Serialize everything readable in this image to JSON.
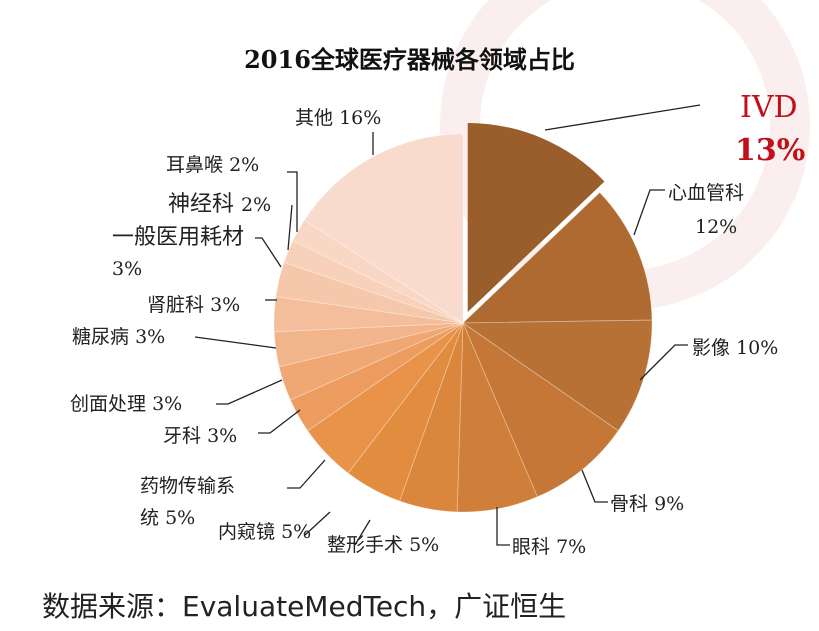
{
  "chart_data": {
    "type": "pie",
    "title": "2016全球医疗器械各领域占比",
    "slices": [
      {
        "label": "IVD",
        "pct_label": "13%",
        "value": 13,
        "color": "#9a5e2c",
        "exploded": true
      },
      {
        "label": "心血管科",
        "pct_label": "12%",
        "value": 12,
        "color": "#ae6a30"
      },
      {
        "label": "影像",
        "pct_label": "10%",
        "value": 10,
        "color": "#b87134"
      },
      {
        "label": "骨科",
        "pct_label": "9%",
        "value": 9,
        "color": "#c47736"
      },
      {
        "label": "眼科",
        "pct_label": "7%",
        "value": 7,
        "color": "#cf7f3a"
      },
      {
        "label": "整形手术",
        "pct_label": "5%",
        "value": 5,
        "color": "#da863c"
      },
      {
        "label": "内窥镜",
        "pct_label": "5%",
        "value": 5,
        "color": "#e28c40"
      },
      {
        "label": "药物传输系统",
        "pct_label": "5%",
        "value": 5,
        "color": "#e8924a"
      },
      {
        "label": "牙科",
        "pct_label": "3%",
        "value": 3,
        "color": "#ec9c5e"
      },
      {
        "label": "创面处理",
        "pct_label": "3%",
        "value": 3,
        "color": "#efa874"
      },
      {
        "label": "糖尿病",
        "pct_label": "3%",
        "value": 3,
        "color": "#f2b48a"
      },
      {
        "label": "肾脏科",
        "pct_label": "3%",
        "value": 3,
        "color": "#f4be9c"
      },
      {
        "label": "一般医用耗材",
        "pct_label": "3%",
        "value": 3,
        "color": "#f6c8ab"
      },
      {
        "label": "神经科",
        "pct_label": "2%",
        "value": 2,
        "color": "#f8d1ba"
      },
      {
        "label": "耳鼻喉",
        "pct_label": "2%",
        "value": 2,
        "color": "#f9d7c5"
      },
      {
        "label": "其他",
        "pct_label": "16%",
        "value": 16,
        "color": "#f9dbcd"
      }
    ]
  },
  "source": "数据来源：EvaluateMedTech，广证恒生"
}
